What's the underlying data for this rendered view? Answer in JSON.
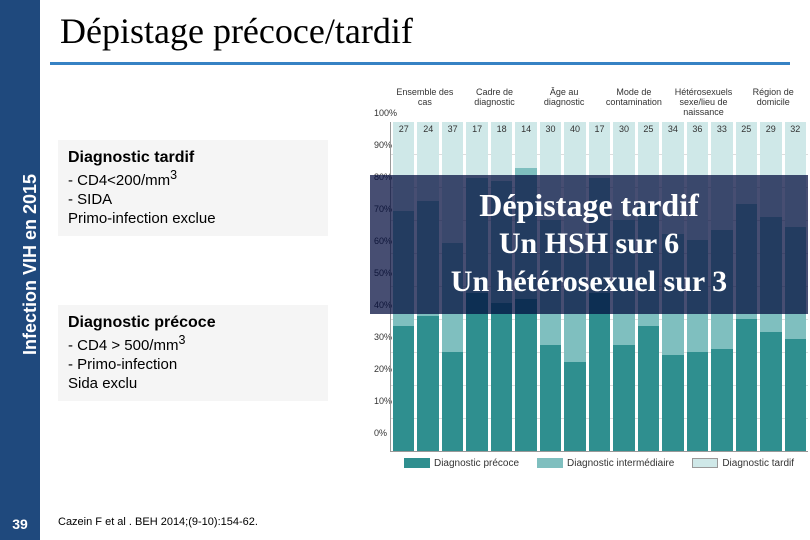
{
  "slide": {
    "number": "39",
    "sidebar_label": "Infection VIH en 2015",
    "title": "Dépistage précoce/tardif",
    "citation": "Cazein F et al . BEH 2014;(9-10):154-62."
  },
  "box_tardif": {
    "heading": "Diagnostic tardif",
    "bullet1": "-  CD4<200/mm",
    "bullet1_sup": "3",
    "bullet2": "-  SIDA",
    "line3": "Primo-infection exclue"
  },
  "box_precoce": {
    "heading": "Diagnostic précoce",
    "bullet1": "-  CD4 > 500/mm",
    "bullet1_sup": "3",
    "bullet2": "-  Primo-infection",
    "line3": "Sida exclu"
  },
  "callout": {
    "line1": "Dépistage tardif",
    "line2": "Un HSH sur 6",
    "line3": "Un hétérosexuel sur 3"
  },
  "chart": {
    "headers": [
      "Ensemble des cas",
      "Cadre de diagnostic",
      "Âge au diagnostic",
      "Mode de contamination",
      "Hétérosexuels sexe/lieu de naissance",
      "Région de domicile"
    ],
    "legend": {
      "precoce": "Diagnostic précoce",
      "intermediaire": "Diagnostic intermédiaire",
      "tardif": "Diagnostic tardif"
    },
    "colors": {
      "precoce": "#2f8f8f",
      "intermediaire": "#7fbfbf",
      "tardif": "#cfe8e8",
      "bg": "#ffffff"
    },
    "yticks": [
      "0%",
      "10%",
      "20%",
      "30%",
      "40%",
      "50%",
      "60%",
      "70%",
      "80%",
      "90%",
      "100%"
    ],
    "bars": [
      {
        "precoce": 38,
        "intermediaire": 35,
        "tardif": 27
      },
      {
        "precoce": 41,
        "intermediaire": 35,
        "tardif": 24
      },
      {
        "precoce": 30,
        "intermediaire": 33,
        "tardif": 37
      },
      {
        "precoce": 48,
        "intermediaire": 35,
        "tardif": 17
      },
      {
        "precoce": 45,
        "intermediaire": 37,
        "tardif": 18
      },
      {
        "precoce": 46,
        "intermediaire": 40,
        "tardif": 14
      },
      {
        "precoce": 32,
        "intermediaire": 38,
        "tardif": 30
      },
      {
        "precoce": 27,
        "intermediaire": 33,
        "tardif": 40
      },
      {
        "precoce": 48,
        "intermediaire": 35,
        "tardif": 17
      },
      {
        "precoce": 32,
        "intermediaire": 38,
        "tardif": 30
      },
      {
        "precoce": 38,
        "intermediaire": 37,
        "tardif": 25
      },
      {
        "precoce": 29,
        "intermediaire": 37,
        "tardif": 34
      },
      {
        "precoce": 30,
        "intermediaire": 34,
        "tardif": 36
      },
      {
        "precoce": 31,
        "intermediaire": 36,
        "tardif": 33
      },
      {
        "precoce": 40,
        "intermediaire": 35,
        "tardif": 25
      },
      {
        "precoce": 36,
        "intermediaire": 35,
        "tardif": 29
      },
      {
        "precoce": 34,
        "intermediaire": 34,
        "tardif": 32
      }
    ]
  }
}
